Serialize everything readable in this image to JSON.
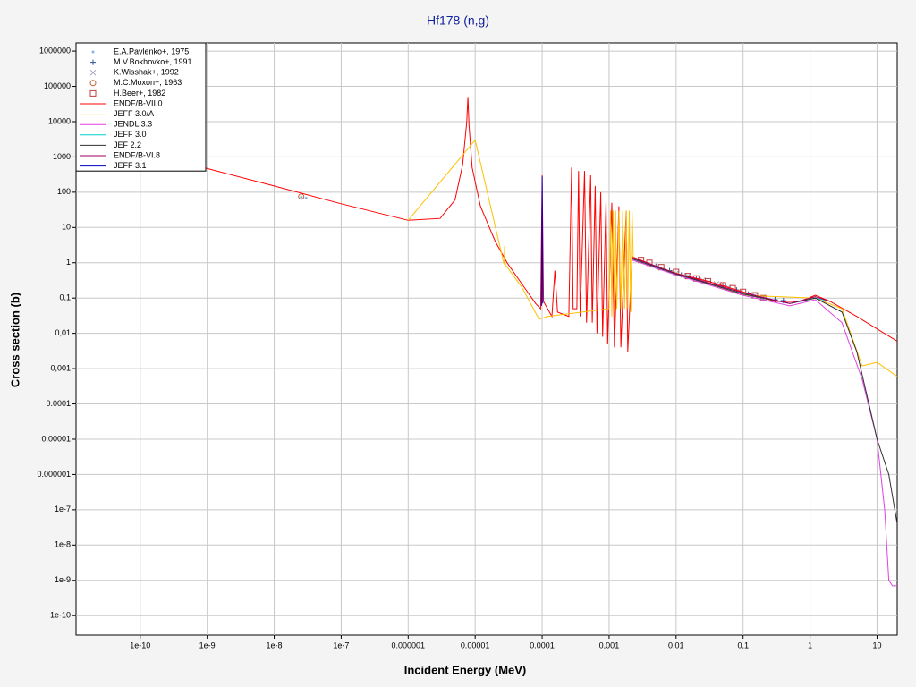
{
  "chart_data": {
    "type": "line",
    "title": "Hf178 (n,g)",
    "xlabel": "Incident Energy (MeV)",
    "ylabel": "Cross section (b)",
    "xscale": "log",
    "yscale": "log",
    "grid": true,
    "legend": "upper left",
    "xlim": [
      1.1e-11,
      20
    ],
    "ylim": [
      2.8e-11,
      1700000
    ],
    "xticks": [
      1e-10,
      1e-09,
      1e-08,
      1e-07,
      1e-06,
      1e-05,
      0.0001,
      {
        "value": 0.001,
        "label": "0,001"
      },
      {
        "value": 0.01,
        "label": "0,01"
      },
      {
        "value": 0.1,
        "label": "0,1"
      },
      1,
      10
    ],
    "yticks": [
      1000000,
      100000,
      10000,
      1000,
      100,
      10,
      1,
      {
        "value": 0.1,
        "label": "0,1"
      },
      {
        "value": 0.01,
        "label": "0,01"
      },
      {
        "value": 0.001,
        "label": "0,001"
      },
      0.0001,
      1e-05,
      1e-06,
      1e-07,
      1e-08,
      1e-09,
      1e-10
    ],
    "series": [
      {
        "name": "E.A.Pavlenko+, 1975",
        "color": "#8ab4e8",
        "marker": "dot",
        "x": [
          2.53e-08,
          3e-08
        ],
        "values": [
          72,
          68
        ]
      },
      {
        "name": "M.V.Bokhovko+, 1991",
        "color": "#3050a0",
        "marker": "plus",
        "x": [
          0.005,
          0.008,
          0.012,
          0.02,
          0.03,
          0.05,
          0.08,
          0.12,
          0.2,
          0.3,
          0.4
        ],
        "values": [
          0.8,
          0.6,
          0.45,
          0.35,
          0.3,
          0.22,
          0.17,
          0.13,
          0.1,
          0.09,
          0.085
        ]
      },
      {
        "name": "K.Wisshak+, 1992",
        "color": "#a0a0c0",
        "marker": "x",
        "x": [
          0.01,
          0.015,
          0.025,
          0.04,
          0.06,
          0.09,
          0.15,
          0.2
        ],
        "values": [
          0.5,
          0.42,
          0.32,
          0.25,
          0.2,
          0.15,
          0.12,
          0.1
        ]
      },
      {
        "name": "M.C.Moxon+, 1963",
        "color": "#c06030",
        "marker": "circle",
        "x": [
          2.53e-08
        ],
        "values": [
          75
        ]
      },
      {
        "name": "H.Beer+, 1982",
        "color": "#c04040",
        "marker": "square",
        "x": [
          0.003,
          0.004,
          0.006,
          0.01,
          0.015,
          0.02,
          0.03,
          0.05,
          0.07,
          0.1,
          0.15,
          0.2
        ],
        "values": [
          1.2,
          1,
          0.75,
          0.55,
          0.42,
          0.36,
          0.3,
          0.23,
          0.19,
          0.15,
          0.12,
          0.1
        ]
      },
      {
        "name": "ENDF/B-VII.0",
        "color": "#ff0000",
        "x": [
          1.1e-11,
          1e-09,
          1e-08,
          1e-07,
          1e-06,
          3e-06,
          5e-06,
          6.5e-06,
          7.5e-06,
          7.8e-06,
          8.1e-06,
          9e-06,
          1.2e-05,
          2e-05,
          3e-05,
          5e-05,
          8e-05,
          9.5e-05,
          0.0001,
          0.000105,
          0.00014,
          0.000155,
          0.00017,
          0.00025,
          0.000275,
          0.00029,
          0.00033,
          0.00035,
          0.00037,
          0.00043,
          0.00046,
          0.00053,
          0.00056,
          0.00062,
          0.00066,
          0.00075,
          0.0008,
          0.0009,
          0.00095,
          0.0011,
          0.0012,
          0.0014,
          0.0015,
          0.0018,
          0.0019,
          0.0022,
          0.005,
          0.01,
          0.03,
          0.1,
          0.3,
          0.7,
          1.2,
          2,
          5,
          20
        ],
        "values": [
          4500,
          470,
          150,
          47,
          16,
          18,
          60,
          600,
          10000,
          50000,
          8000,
          500,
          40,
          4,
          1,
          0.25,
          0.07,
          0.05,
          300,
          0.08,
          0.03,
          0.6,
          0.04,
          0.03,
          500,
          0.05,
          0.05,
          400,
          0.03,
          400,
          0.02,
          300,
          0.02,
          150,
          0.01,
          100,
          0.008,
          60,
          0.005,
          50,
          0.004,
          40,
          0.004,
          30,
          0.003,
          1.5,
          0.8,
          0.5,
          0.3,
          0.15,
          0.08,
          0.08,
          0.12,
          0.08,
          0.03,
          0.006
        ]
      },
      {
        "name": "JEFF 3.0/A",
        "color": "#ffc000",
        "x": [
          1e-06,
          1e-05,
          2.7e-05,
          2.75e-05,
          2.8e-05,
          5e-05,
          9e-05,
          0.00012,
          0.001,
          0.00105,
          0.0011,
          0.00115,
          0.0012,
          0.00125,
          0.0013,
          0.0014,
          0.0015,
          0.0016,
          0.0017,
          0.0018,
          0.0019,
          0.002,
          0.0021,
          0.0022,
          0.0023,
          0.1,
          1.2,
          3,
          6,
          10,
          20
        ],
        "values": [
          16,
          3000,
          0.9,
          3,
          0.9,
          0.2,
          0.025,
          0.03,
          0.05,
          30,
          0.03,
          30,
          0.04,
          30,
          0.05,
          30,
          0.05,
          30,
          0.05,
          30,
          0.05,
          30,
          0.04,
          30,
          1.3,
          0.12,
          0.1,
          0.05,
          0.0012,
          0.0015,
          0.0006
        ]
      },
      {
        "name": "JENDL 3.3",
        "color": "#e040e0",
        "x": [
          0.0022,
          0.01,
          0.1,
          0.5,
          1.2,
          3,
          6,
          10,
          13,
          15,
          17,
          20
        ],
        "values": [
          1.2,
          0.45,
          0.12,
          0.06,
          0.09,
          0.02,
          0.0005,
          1e-05,
          1e-07,
          1e-09,
          7e-10,
          7e-10
        ]
      },
      {
        "name": "JEFF 3.0",
        "color": "#00d0d0",
        "x": [
          0.0022,
          0.01,
          0.1,
          0.5,
          1.2,
          2
        ],
        "values": [
          1.3,
          0.48,
          0.13,
          0.07,
          0.1,
          0.08
        ]
      },
      {
        "name": "JEF 2.2",
        "color": "#303030",
        "x": [
          0.0022,
          0.01,
          0.1,
          0.5,
          1.2,
          3,
          5,
          10,
          15,
          20
        ],
        "values": [
          1.3,
          0.48,
          0.13,
          0.07,
          0.1,
          0.04,
          0.003,
          1e-05,
          1e-06,
          4e-08
        ]
      },
      {
        "name": "ENDF/B-VI.8",
        "color": "#a00060",
        "x": [
          0.0022,
          0.01,
          0.1,
          0.5,
          1.2,
          2
        ],
        "values": [
          1.4,
          0.5,
          0.14,
          0.07,
          0.11,
          0.08
        ]
      },
      {
        "name": "JEFF 3.1",
        "color": "#0000c0",
        "x": [
          9.8e-05,
          0.0001,
          0.000102
        ],
        "values": [
          0.06,
          280,
          0.07
        ]
      }
    ]
  }
}
